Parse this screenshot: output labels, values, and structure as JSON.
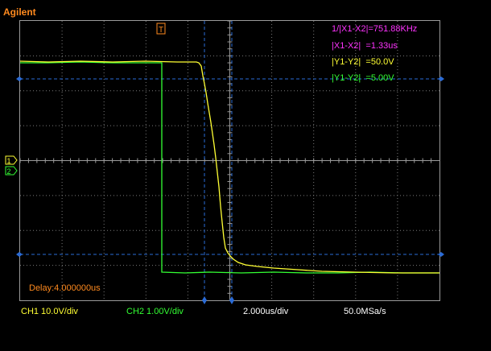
{
  "brand": "Agilent",
  "trigger_marker": "T",
  "channel_markers": [
    "1",
    "2"
  ],
  "measurements": [
    {
      "text": "1/|X1-X2|=751.88KHz",
      "color": "#ff33ff"
    },
    {
      "text": "|X1-X2|  =1.33us",
      "color": "#ff33ff"
    },
    {
      "text": "|Y1-Y2|  =50.0V",
      "color": "#ffff33"
    },
    {
      "text": "|Y1-Y2|  =5.00V",
      "color": "#33ff33"
    }
  ],
  "delay": "Delay:4.000000us",
  "status": {
    "ch1": "CH1 10.0V/div",
    "ch2": "CH2 1.00V/div",
    "timebase": "2.000us/div",
    "sample_rate": "50.0MSa/s"
  },
  "colors": {
    "brand": "#ff8a1e",
    "ch1": "#ffff33",
    "ch2": "#33ff33",
    "cursor": "#2a6bd6",
    "grid": "#7a7a7a",
    "delay": "#ff8a1e",
    "status_ch1": "#ffff33",
    "status_ch2": "#33ff33",
    "status_text": "#ffffff"
  }
}
